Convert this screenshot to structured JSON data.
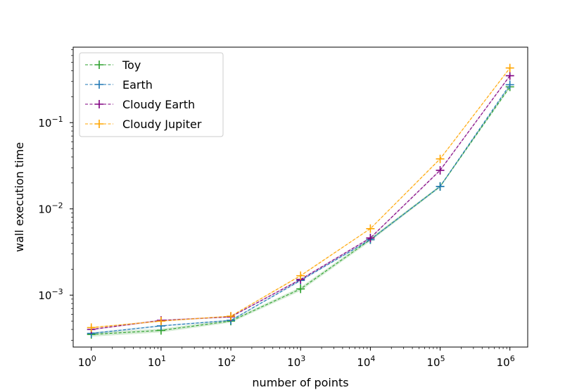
{
  "chart_data": {
    "type": "line",
    "xlabel": "number of points",
    "ylabel": "wall execution time",
    "xscale": "log",
    "yscale": "log",
    "xlim": [
      0.55,
      1800000.0
    ],
    "ylim": [
      0.00025,
      0.75
    ],
    "grid": false,
    "legend_position": "top-left",
    "x": [
      1,
      10,
      100,
      1000,
      10000,
      100000,
      1000000
    ],
    "x_ticks": [
      {
        "base": "10",
        "exp": "0"
      },
      {
        "base": "10",
        "exp": "1"
      },
      {
        "base": "10",
        "exp": "2"
      },
      {
        "base": "10",
        "exp": "3"
      },
      {
        "base": "10",
        "exp": "4"
      },
      {
        "base": "10",
        "exp": "5"
      },
      {
        "base": "10",
        "exp": "6"
      }
    ],
    "y_ticks": [
      {
        "value": 0.001,
        "base": "10",
        "exp": "−3"
      },
      {
        "value": 0.01,
        "base": "10",
        "exp": "−2"
      },
      {
        "value": 0.1,
        "base": "10",
        "exp": "−1"
      }
    ],
    "series": [
      {
        "name": "Toy",
        "color": "#2ca02c",
        "values": [
          0.00035,
          0.00039,
          0.0005,
          0.00118,
          0.0044,
          0.0182,
          0.26
        ],
        "band_lo": [
          0.00033,
          0.00037,
          0.00048,
          0.00112,
          0.0042,
          0.0176,
          0.25
        ],
        "band_hi": [
          0.00037,
          0.00041,
          0.00052,
          0.00124,
          0.0046,
          0.0188,
          0.27
        ]
      },
      {
        "name": "Earth",
        "color": "#1f77b4",
        "values": [
          0.00036,
          0.00044,
          0.00051,
          0.00148,
          0.0044,
          0.0182,
          0.275
        ],
        "band_lo": [
          0.00035,
          0.00043,
          0.0005,
          0.00144,
          0.0043,
          0.0178,
          0.268
        ],
        "band_hi": [
          0.00037,
          0.00045,
          0.00052,
          0.00152,
          0.0045,
          0.0186,
          0.282
        ]
      },
      {
        "name": "Cloudy Earth",
        "color": "#800080",
        "values": [
          0.0004,
          0.00051,
          0.00056,
          0.00152,
          0.0046,
          0.028,
          0.35
        ],
        "band_lo": [
          0.00039,
          0.0005,
          0.00055,
          0.00148,
          0.0045,
          0.0272,
          0.34
        ],
        "band_hi": [
          0.00041,
          0.00052,
          0.00057,
          0.00156,
          0.0047,
          0.0288,
          0.36
        ]
      },
      {
        "name": "Cloudy Jupiter",
        "color": "#ffa500",
        "values": [
          0.00042,
          0.0005,
          0.00057,
          0.00168,
          0.0059,
          0.038,
          0.43
        ],
        "band_lo": [
          0.00041,
          0.00049,
          0.00056,
          0.00164,
          0.0058,
          0.037,
          0.42
        ],
        "band_hi": [
          0.00043,
          0.00051,
          0.00058,
          0.00172,
          0.006,
          0.039,
          0.44
        ]
      }
    ]
  }
}
